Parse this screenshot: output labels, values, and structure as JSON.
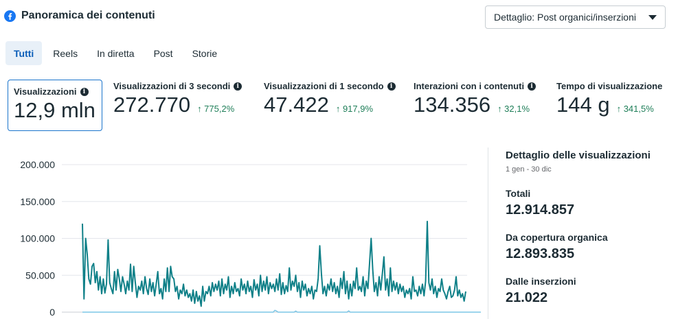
{
  "header": {
    "title": "Panoramica dei contenuti",
    "dropdown_label": "Dettaglio: Post organici/inserzioni"
  },
  "tabs": [
    {
      "label": "Tutti",
      "active": true
    },
    {
      "label": "Reels"
    },
    {
      "label": "In diretta"
    },
    {
      "label": "Post"
    },
    {
      "label": "Storie"
    }
  ],
  "metrics": [
    {
      "label": "Visualizzazioni",
      "value": "12,9 mln",
      "change": ""
    },
    {
      "label": "Visualizzazioni di 3 secondi",
      "value": "272.770",
      "change": "↑ 775,2%"
    },
    {
      "label": "Visualizzazioni di 1 secondo",
      "value": "47.422",
      "change": "↑ 917,9%"
    },
    {
      "label": "Interazioni con i contenuti",
      "value": "134.356",
      "change": "↑ 32,1%"
    },
    {
      "label": "Tempo di visualizzazione",
      "value": "144 g",
      "change": "↑ 341,5%"
    }
  ],
  "sidebar": {
    "title": "Dettaglio delle visualizzazioni",
    "subtitle": "1 gen - 30 dic",
    "totals_label": "Totali",
    "totals_value": "12.914.857",
    "organic_label": "Da copertura organica",
    "organic_value": "12.893.835",
    "ads_label": "Dalle inserzioni",
    "ads_value": "21.022"
  },
  "colors": {
    "organic": "#0f8088",
    "ads": "#7cc6e6",
    "accent": "#0a5db8",
    "positive": "#1e7e58"
  },
  "chart_data": {
    "type": "line",
    "ylim": [
      0,
      200000
    ],
    "yticks": [
      "0",
      "50.000",
      "100.000",
      "150.000",
      "200.000"
    ],
    "series": [
      {
        "values": [
          120000,
          18000,
          100000,
          78000,
          45000,
          38000,
          62000,
          66000,
          40000,
          55000,
          30000,
          48000,
          25000,
          45000,
          26000,
          38000,
          98000,
          40000,
          32000,
          25000,
          55000,
          30000,
          58000,
          45000,
          28000,
          48000,
          38000,
          25000,
          42000,
          30000,
          65000,
          28000,
          62000,
          40000,
          20000,
          35000,
          30000,
          42000,
          25000,
          48000,
          32000,
          24000,
          45000,
          28000,
          40000,
          22000,
          38000,
          55000,
          25000,
          32000,
          18000,
          45000,
          28000,
          60000,
          28000,
          62000,
          48000,
          45000,
          28000,
          35000,
          18000,
          30000,
          25000,
          38000,
          22000,
          30000,
          20000,
          25000,
          15000,
          30000,
          12000,
          28000,
          15000,
          22000,
          8000,
          35000,
          15000,
          28000,
          25000,
          35000,
          22000,
          40000,
          28000,
          38000,
          30000,
          42000,
          22000,
          45000,
          25000,
          38000,
          30000,
          48000,
          20000,
          35000,
          25000,
          40000,
          28000,
          32000,
          22000,
          45000,
          30000,
          38000,
          25000,
          42000,
          28000,
          35000,
          20000,
          44000,
          30000,
          38000,
          22000,
          50000,
          28000,
          42000,
          30000,
          48000,
          25000,
          40000,
          32000,
          38000,
          28000,
          45000,
          30000,
          52000,
          24000,
          40000,
          25000,
          36000,
          28000,
          60000,
          30000,
          42000,
          35000,
          50000,
          28000,
          40000,
          20000,
          42000,
          30000,
          38000,
          22000,
          32000,
          25000,
          35000,
          18000,
          30000,
          28000,
          46000,
          90000,
          52000,
          25000,
          35000,
          22000,
          38000,
          30000,
          45000,
          28000,
          40000,
          25000,
          35000,
          20000,
          46000,
          32000,
          55000,
          25000,
          42000,
          18000,
          38000,
          22000,
          42000,
          32000,
          60000,
          30000,
          35000,
          28000,
          48000,
          22000,
          42000,
          32000,
          65000,
          100000,
          58000,
          28000,
          40000,
          22000,
          48000,
          30000,
          52000,
          75000,
          30000,
          45000,
          22000,
          60000,
          28000,
          42000,
          30000,
          40000,
          25000,
          38000,
          28000,
          35000,
          20000,
          30000,
          25000,
          32000,
          18000,
          48000,
          28000,
          30000,
          22000,
          35000,
          25000,
          38000,
          22000,
          42000,
          123000,
          40000,
          30000,
          45000,
          25000,
          35000,
          20000,
          32000,
          28000,
          45000,
          30000,
          25000,
          18000,
          28000,
          35000,
          20000,
          22000,
          30000,
          48000,
          22000,
          30000,
          20000,
          25000,
          15000,
          28000
        ]
      },
      {
        "values": [
          0,
          0,
          0,
          0,
          0,
          0,
          0,
          0,
          0,
          0,
          0,
          0,
          0,
          0,
          0,
          0,
          0,
          0,
          0,
          0,
          0,
          0,
          0,
          0,
          0,
          0,
          0,
          0,
          0,
          0,
          0,
          0,
          0,
          0,
          0,
          0,
          0,
          0,
          0,
          0,
          0,
          0,
          0,
          0,
          0,
          0,
          0,
          0,
          0,
          0,
          0,
          0,
          0,
          0,
          0,
          0,
          0,
          0,
          0,
          0,
          0,
          0,
          0,
          0,
          0,
          0,
          0,
          0,
          0,
          0,
          0,
          0,
          0,
          0,
          0,
          0,
          0,
          0,
          0,
          0,
          0,
          0,
          0,
          0,
          0,
          0,
          0,
          0,
          0,
          0,
          0,
          0,
          0,
          0,
          0,
          0,
          0,
          0,
          0,
          0,
          0,
          0,
          0,
          0,
          0,
          0,
          0,
          0,
          0,
          0,
          0,
          0,
          0,
          0,
          0,
          0,
          0,
          0,
          0,
          0,
          2500,
          1500,
          0,
          0,
          0,
          0,
          0,
          0,
          0,
          0,
          0,
          0,
          0,
          1500,
          0,
          0,
          0,
          0,
          0,
          0,
          0,
          0,
          0,
          0,
          0,
          0,
          0,
          0,
          0,
          0,
          0,
          0,
          0,
          0,
          0,
          0,
          0,
          0,
          0,
          0,
          0,
          0,
          0,
          0,
          0,
          0,
          1800,
          0,
          0,
          0,
          0,
          0,
          0,
          0,
          0,
          0,
          0,
          0,
          0,
          0,
          0,
          0,
          0,
          0,
          0,
          0,
          0,
          0,
          0,
          0,
          0,
          0,
          0,
          0,
          0,
          0,
          0,
          0,
          0,
          0,
          0,
          0,
          0,
          0,
          0,
          0,
          0,
          0,
          0,
          0,
          0,
          0,
          0,
          0,
          0,
          0,
          0,
          0,
          0,
          0,
          0,
          0,
          0,
          0,
          0,
          0,
          0,
          0,
          0,
          0,
          0,
          0,
          0,
          0,
          0,
          0,
          0,
          0,
          0,
          0,
          0,
          0,
          0,
          0,
          0,
          0,
          0,
          0,
          0,
          0
        ]
      }
    ]
  }
}
